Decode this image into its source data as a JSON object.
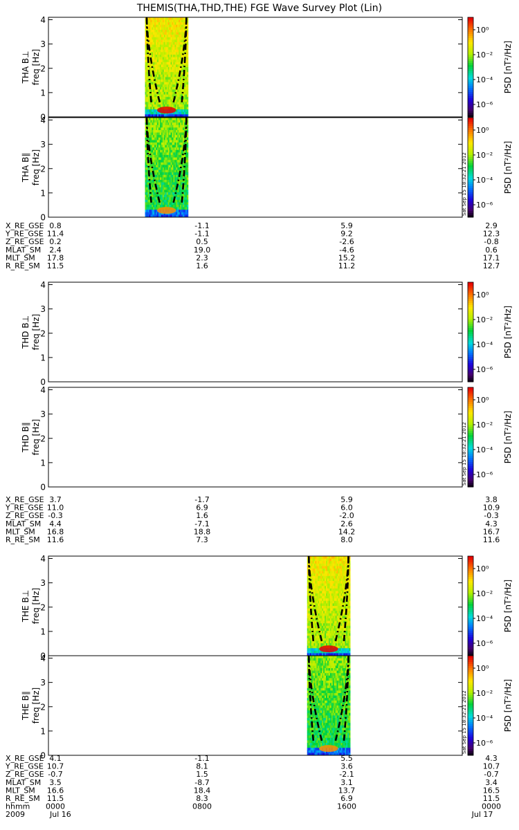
{
  "title": "THEMIS(THA,THD,THE) FGE Wave Survey Plot (Lin)",
  "side_stamp": "Sat Sep 15 18:32:21 2012",
  "colorbar": {
    "label_psd": "PSD",
    "label_unit": "[nT²/Hz]",
    "tick_labels": [
      "10⁰",
      "10⁻²",
      "10⁻⁴",
      "10⁻⁶"
    ],
    "tick_exponents": [
      0,
      -2,
      -4,
      -6
    ],
    "range_exponent": [
      -7,
      1
    ]
  },
  "chart_data": {
    "type": "heatmap",
    "x_range_hours": [
      0,
      24
    ],
    "y_range_hz": [
      0,
      4.1
    ],
    "y_ticks": [
      0,
      1,
      2,
      3,
      4
    ],
    "y_tick_labels": [
      "0",
      "1",
      "2",
      "3",
      "4"
    ],
    "ylabel": "freq [Hz]",
    "panels": [
      {
        "probe": "THA",
        "label": "THA B⊥",
        "component": "perp",
        "active_hours": [
          5.6,
          8.1
        ]
      },
      {
        "probe": "THA",
        "label": "THA B∥",
        "component": "par",
        "active_hours": [
          5.6,
          8.1
        ]
      },
      {
        "probe": "THD",
        "label": "THD B⊥",
        "component": "perp",
        "active_hours": []
      },
      {
        "probe": "THD",
        "label": "THD B∥",
        "component": "par",
        "active_hours": []
      },
      {
        "probe": "THE",
        "label": "THE B⊥",
        "component": "perp",
        "active_hours": [
          15.0,
          17.5
        ]
      },
      {
        "probe": "THE",
        "label": "THE B∥",
        "component": "par",
        "active_hours": [
          15.0,
          17.5
        ]
      }
    ]
  },
  "ephemeris": [
    {
      "probe": "THA",
      "rows": [
        {
          "name": "X_RE_GSE",
          "values": [
            "0.8",
            "-1.1",
            "5.9",
            "2.9"
          ]
        },
        {
          "name": "Y_RE_GSE",
          "values": [
            "11.4",
            "-1.1",
            "9.2",
            "12.3"
          ]
        },
        {
          "name": "Z_RE_GSE",
          "values": [
            "0.2",
            "0.5",
            "-2.6",
            "-0.8"
          ]
        },
        {
          "name": "MLAT_SM",
          "values": [
            "2.4",
            "19.0",
            "-4.6",
            "0.6"
          ]
        },
        {
          "name": "MLT_SM",
          "values": [
            "17.8",
            "2.3",
            "15.2",
            "17.1"
          ]
        },
        {
          "name": "R_RE_SM",
          "values": [
            "11.5",
            "1.6",
            "11.2",
            "12.7"
          ]
        }
      ]
    },
    {
      "probe": "THD",
      "rows": [
        {
          "name": "X_RE_GSE",
          "values": [
            "3.7",
            "-1.7",
            "5.9",
            "3.8"
          ]
        },
        {
          "name": "Y_RE_GSE",
          "values": [
            "11.0",
            "6.9",
            "6.0",
            "10.9"
          ]
        },
        {
          "name": "Z_RE_GSE",
          "values": [
            "-0.3",
            "1.6",
            "-2.0",
            "-0.3"
          ]
        },
        {
          "name": "MLAT_SM",
          "values": [
            "4.4",
            "-7.1",
            "2.6",
            "4.3"
          ]
        },
        {
          "name": "MLT_SM",
          "values": [
            "16.8",
            "18.8",
            "14.2",
            "16.7"
          ]
        },
        {
          "name": "R_RE_SM",
          "values": [
            "11.6",
            "7.3",
            "8.0",
            "11.6"
          ]
        }
      ]
    },
    {
      "probe": "THE",
      "rows": [
        {
          "name": "X_RE_GSE",
          "values": [
            "4.1",
            "-1.1",
            "5.5",
            "4.3"
          ]
        },
        {
          "name": "Y_RE_GSE",
          "values": [
            "10.7",
            "8.1",
            "3.6",
            "10.7"
          ]
        },
        {
          "name": "Z_RE_GSE",
          "values": [
            "-0.7",
            "1.5",
            "-2.1",
            "-0.7"
          ]
        },
        {
          "name": "MLAT_SM",
          "values": [
            "3.5",
            "-8.7",
            "3.1",
            "3.4"
          ]
        },
        {
          "name": "MLT_SM",
          "values": [
            "16.6",
            "18.4",
            "13.7",
            "16.5"
          ]
        },
        {
          "name": "R_RE_SM",
          "values": [
            "11.5",
            "8.3",
            "6.9",
            "11.5"
          ]
        },
        {
          "name": "hhmm",
          "values": [
            "0000",
            "0800",
            "1600",
            "0000"
          ]
        }
      ]
    }
  ],
  "time_axis": {
    "year": "2009",
    "start_date": "Jul 16",
    "end_date": "Jul 17"
  }
}
